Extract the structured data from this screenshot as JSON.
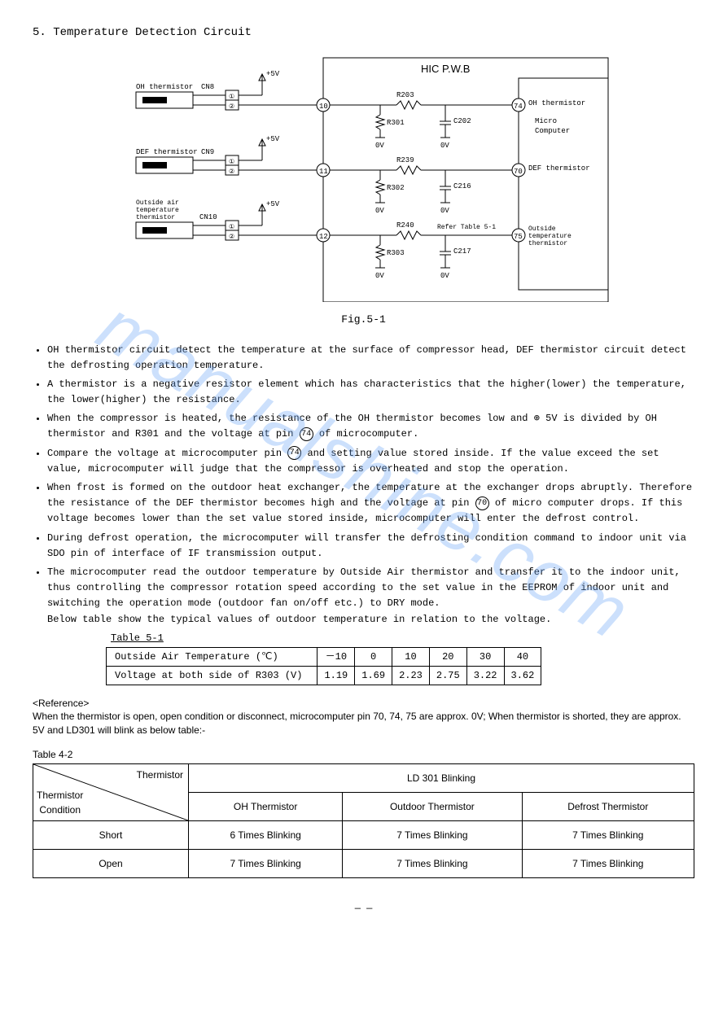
{
  "section": {
    "number": "5.",
    "title": "Temperature Detection Circuit"
  },
  "diagram": {
    "title": "HIC P.W.B",
    "micro_label1": "Micro",
    "micro_label2": "Computer",
    "voltage_label": "+5V",
    "zero_label": "0V",
    "thermistors": [
      {
        "name": "OH thermistor",
        "conn": "CN8",
        "pin_in": "10",
        "pin_out": "74",
        "out_label": "OH thermistor",
        "res_label": "R203",
        "r_pull": "R301",
        "cap": "C202"
      },
      {
        "name": "DEF thermistor",
        "conn": "CN9",
        "pin_in": "11",
        "pin_out": "70",
        "out_label": "DEF thermistor",
        "res_label": "R239",
        "r_pull": "R302",
        "cap": "C216"
      },
      {
        "name": "Outside air\ntemperature\nthermistor",
        "conn": "CN10",
        "pin_in": "12",
        "pin_out": "75",
        "out_label": "Outside\ntemperature\nthermistor",
        "res_label": "R240",
        "r_pull": "R303",
        "cap": "C217",
        "note": "Refer Table 5-1"
      }
    ]
  },
  "fig_caption": "Fig.5-1",
  "bullets": [
    "OH thermistor circuit detect the temperature at the surface of compressor head, DEF thermistor circuit detect the defrosting operation temperature.",
    "A thermistor is a negative resistor element which has characteristics that the higher(lower) the temperature, the lower(higher) the resistance.",
    "When the compressor is heated, the resistance of the OH thermistor becomes low and ⊕ 5V is divided by OH thermistor and R301 and the voltage at pin {pin74} of microcomputer.",
    "Compare the voltage at microcomputer pin {pin74} and setting value stored inside. If the value exceed the set value, microcomputer will judge  that the compressor is overheated and stop the operation.",
    "When frost is formed on the outdoor heat exchanger, the temperature at the exchanger drops abruptly. Therefore the resistance of the DEF thermistor becomes high and the voltage at pin {pin70} of micro computer drops. If this voltage becomes lower than the set value stored inside, microcomputer will enter the defrost control.",
    "During defrost operation, the microcomputer will transfer the defrosting condition command to indoor unit via SDO pin of interface of IF transmission output.",
    "The microcomputer read the outdoor temperature by Outside Air thermistor and transfer it to the indoor unit, thus controlling the compressor rotation speed according to the set value in the EEPROM of indoor unit and switching the operation mode (outdoor fan on/off etc.) to DRY mode.\nBelow table show the typical values of outdoor temperature in relation to the voltage."
  ],
  "table51": {
    "caption": "Table 5-1",
    "row1_label": "Outside Air Temperature (℃)",
    "row1_values": [
      "－10",
      "0",
      "10",
      "20",
      "30",
      "40"
    ],
    "row2_label": "Voltage at both side of R303 (V)",
    "row2_values": [
      "1.19",
      "1.69",
      "2.23",
      "2.75",
      "3.22",
      "3.62"
    ]
  },
  "reference": {
    "title": "<Reference>",
    "text": "When the thermistor is open, open condition or disconnect, microcomputer pin 70, 74, 75 are approx. 0V; When thermistor is shorted, they are approx. 5V and LD301 will blink as below table:-"
  },
  "table42": {
    "caption": "Table 4-2",
    "diag_top": "Thermistor",
    "diag_bot": "Thermistor\nCondition",
    "top_header": "LD 301 Blinking",
    "columns": [
      "OH Thermistor",
      "Outdoor Thermistor",
      "Defrost Thermistor"
    ],
    "rows": [
      {
        "label": "Short",
        "cells": [
          "6 Times Blinking",
          "7 Times Blinking",
          "7 Times Blinking"
        ]
      },
      {
        "label": "Open",
        "cells": [
          "7 Times Blinking",
          "7 Times Blinking",
          "7 Times Blinking"
        ]
      }
    ]
  },
  "watermark": "manualshine.com",
  "page_num": "—   —",
  "colors": {
    "stroke": "#000000",
    "watermark": "#6fa8f7"
  }
}
